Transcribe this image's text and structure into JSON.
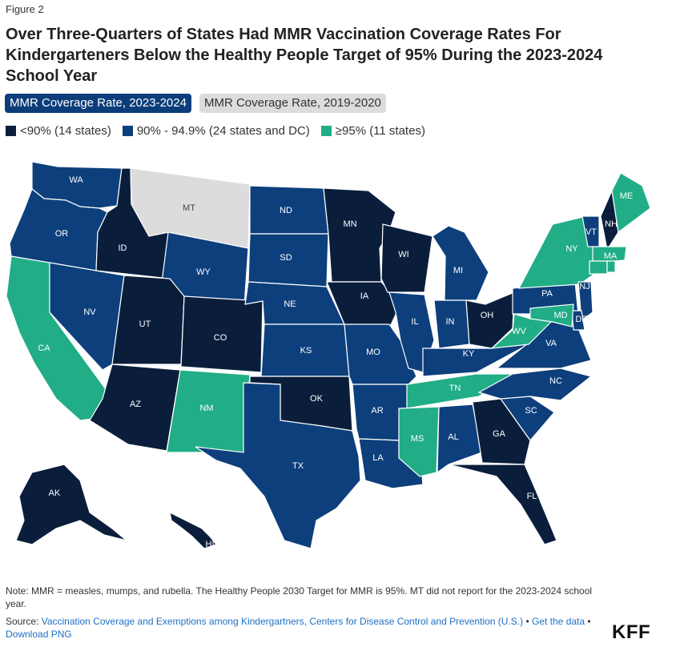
{
  "figure_label": "Figure 2",
  "title": "Over Three-Quarters of States Had MMR Vaccination Coverage Rates For Kindergarteners Below the Healthy People Target of 95% During the 2023-2024 School Year",
  "tabs": [
    {
      "label": "MMR Coverage Rate, 2023-2024",
      "active": true
    },
    {
      "label": "MMR Coverage Rate, 2019-2020",
      "active": false
    }
  ],
  "legend": [
    {
      "label": "<90% (14 states)",
      "color": "#0a1e3c"
    },
    {
      "label": "90% - 94.9% (24 states and DC)",
      "color": "#0d3f7c"
    },
    {
      "label": "≥95% (11 states)",
      "color": "#21ad86"
    }
  ],
  "no_data_color": "#dcdcdc",
  "states": [
    {
      "abbr": "WA",
      "cat": "mid"
    },
    {
      "abbr": "OR",
      "cat": "mid"
    },
    {
      "abbr": "CA",
      "cat": "high"
    },
    {
      "abbr": "ID",
      "cat": "low"
    },
    {
      "abbr": "NV",
      "cat": "mid"
    },
    {
      "abbr": "MT",
      "cat": "none"
    },
    {
      "abbr": "WY",
      "cat": "mid"
    },
    {
      "abbr": "UT",
      "cat": "low"
    },
    {
      "abbr": "CO",
      "cat": "low"
    },
    {
      "abbr": "AZ",
      "cat": "low"
    },
    {
      "abbr": "NM",
      "cat": "high"
    },
    {
      "abbr": "ND",
      "cat": "mid"
    },
    {
      "abbr": "SD",
      "cat": "mid"
    },
    {
      "abbr": "NE",
      "cat": "mid"
    },
    {
      "abbr": "KS",
      "cat": "mid"
    },
    {
      "abbr": "OK",
      "cat": "low"
    },
    {
      "abbr": "TX",
      "cat": "mid"
    },
    {
      "abbr": "MN",
      "cat": "low"
    },
    {
      "abbr": "IA",
      "cat": "low"
    },
    {
      "abbr": "MO",
      "cat": "mid"
    },
    {
      "abbr": "AR",
      "cat": "mid"
    },
    {
      "abbr": "LA",
      "cat": "mid"
    },
    {
      "abbr": "WI",
      "cat": "low"
    },
    {
      "abbr": "IL",
      "cat": "mid"
    },
    {
      "abbr": "MI",
      "cat": "mid"
    },
    {
      "abbr": "IN",
      "cat": "mid"
    },
    {
      "abbr": "OH",
      "cat": "low"
    },
    {
      "abbr": "KY",
      "cat": "mid"
    },
    {
      "abbr": "TN",
      "cat": "high"
    },
    {
      "abbr": "MS",
      "cat": "high"
    },
    {
      "abbr": "AL",
      "cat": "mid"
    },
    {
      "abbr": "GA",
      "cat": "low"
    },
    {
      "abbr": "FL",
      "cat": "low"
    },
    {
      "abbr": "SC",
      "cat": "mid"
    },
    {
      "abbr": "NC",
      "cat": "mid"
    },
    {
      "abbr": "VA",
      "cat": "mid"
    },
    {
      "abbr": "WV",
      "cat": "high"
    },
    {
      "abbr": "PA",
      "cat": "mid"
    },
    {
      "abbr": "NY",
      "cat": "high"
    },
    {
      "abbr": "VT",
      "cat": "mid"
    },
    {
      "abbr": "NH",
      "cat": "low"
    },
    {
      "abbr": "ME",
      "cat": "high"
    },
    {
      "abbr": "MA",
      "cat": "high"
    },
    {
      "abbr": "NJ",
      "cat": "mid"
    },
    {
      "abbr": "DE",
      "cat": "mid"
    },
    {
      "abbr": "MD",
      "cat": "high"
    },
    {
      "abbr": "AK",
      "cat": "low"
    },
    {
      "abbr": "HI",
      "cat": "low"
    },
    {
      "abbr": "CT",
      "cat": "high"
    },
    {
      "abbr": "RI",
      "cat": "high"
    }
  ],
  "note": "Note: MMR = measles, mumps, and rubella. The Healthy People 2030 Target for MMR is 95%. MT did not report for the 2023-2024 school year.",
  "source": {
    "prefix": "Source: ",
    "link1": "Vaccination Coverage and Exemptions among Kindergartners, Centers for Disease Control and Prevention (U.S.)",
    "sep1": " • ",
    "link2": "Get the data",
    "sep2": " • ",
    "link3": "Download PNG"
  },
  "logo": "KFF"
}
